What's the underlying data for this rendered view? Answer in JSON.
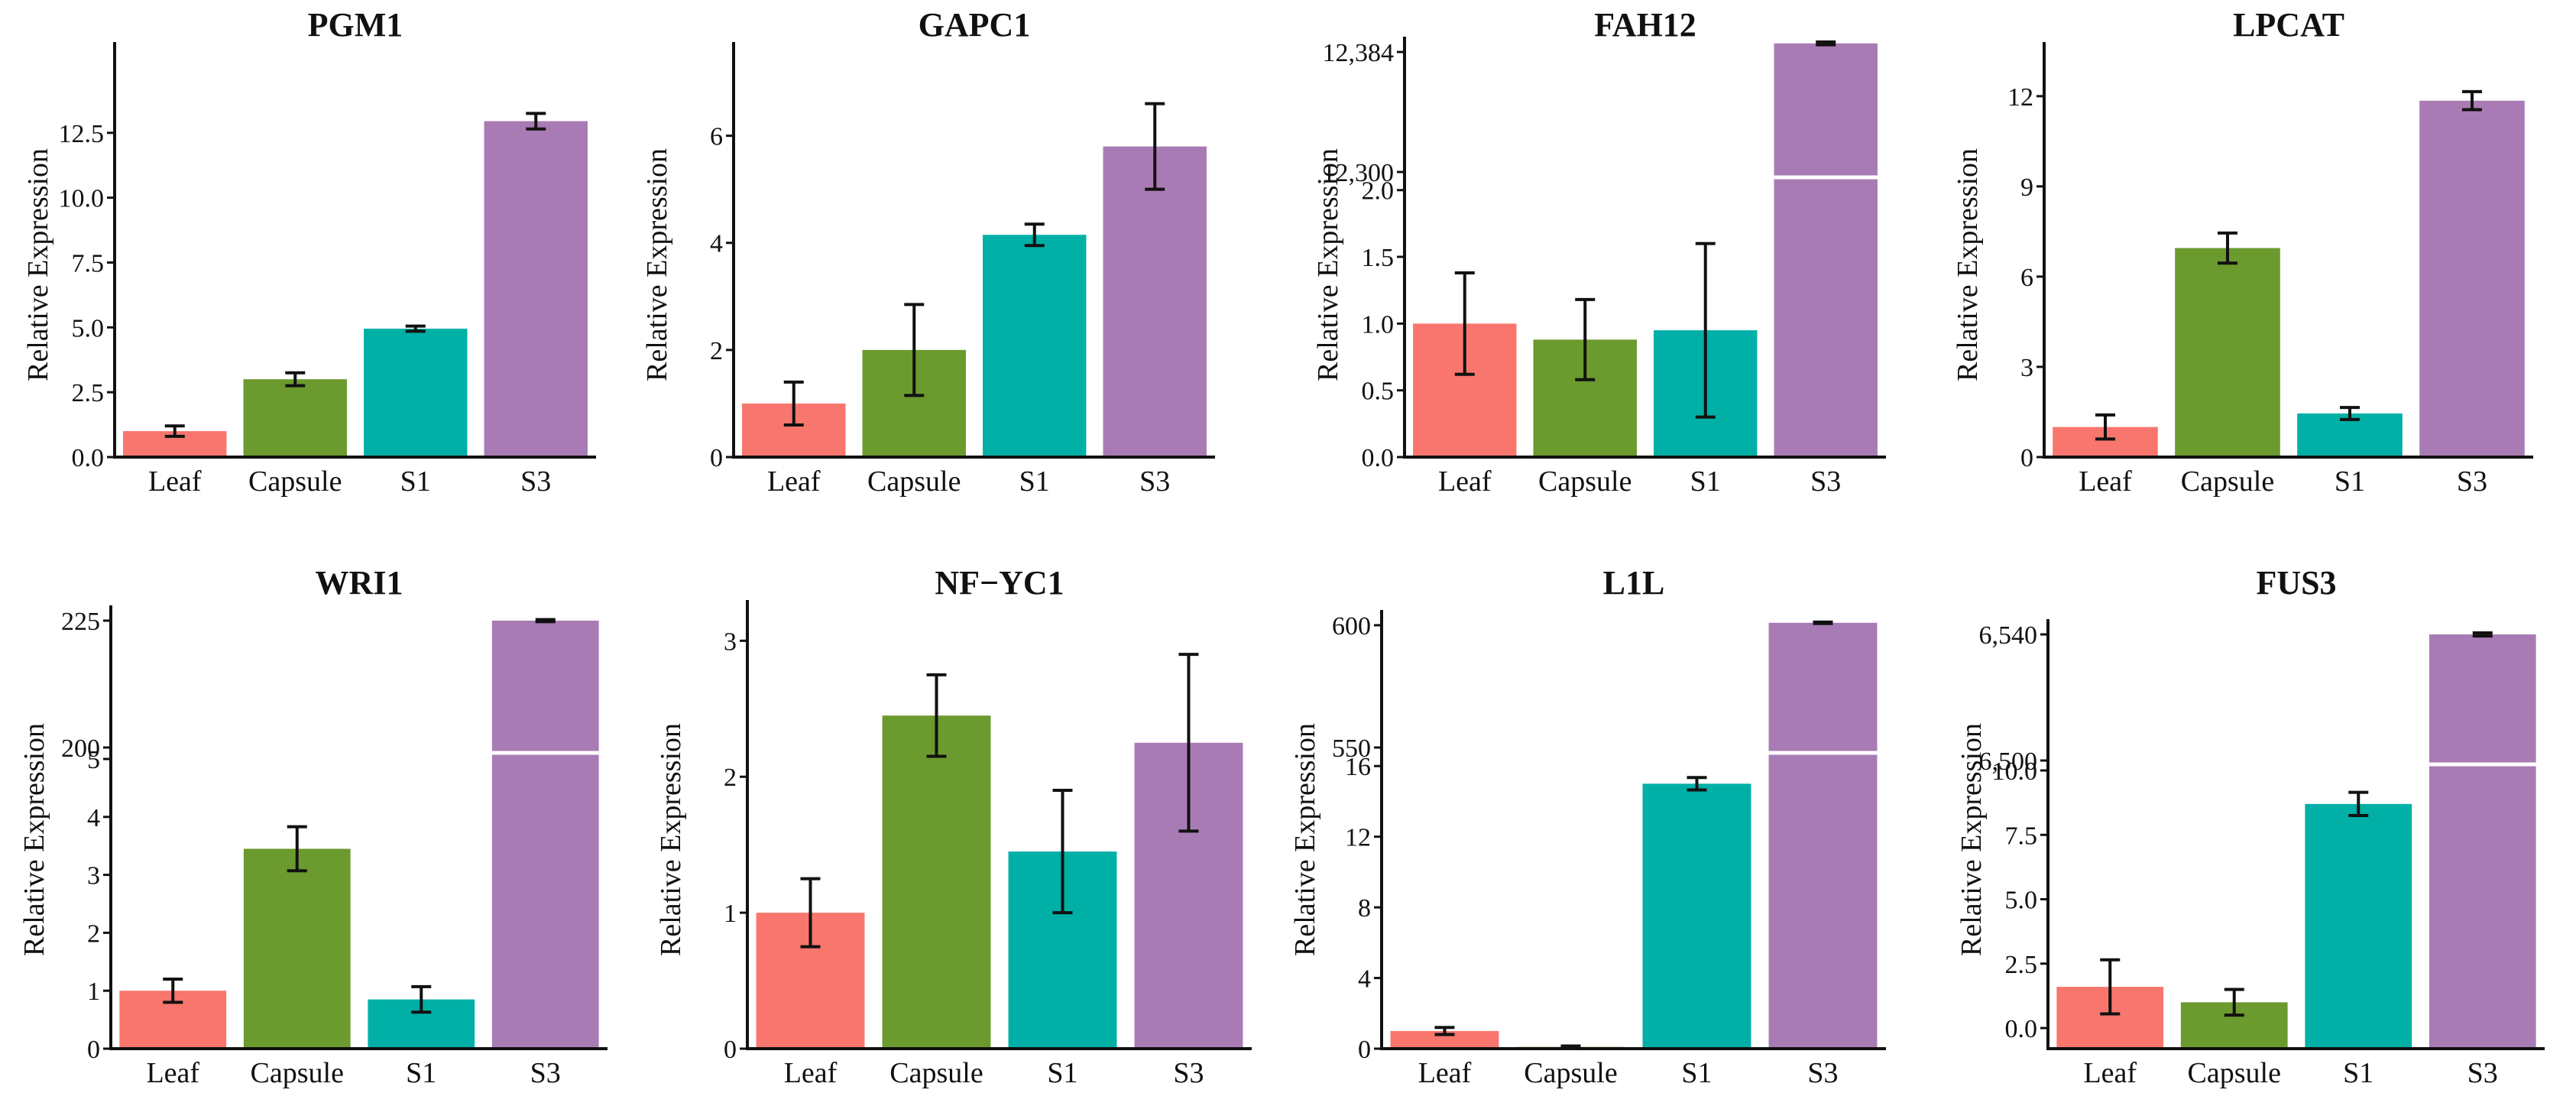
{
  "colors": {
    "Leaf": "#F8766D",
    "Capsule": "#6B9A2E",
    "S1": "#00B0A6",
    "S3": "#A97BB4",
    "axis": "#111111",
    "break_line": "#ffffff"
  },
  "chart_data": [
    {
      "type": "bar",
      "title": "PGM1",
      "xlabel": "",
      "ylabel": "Relative Expression",
      "categories": [
        "Leaf",
        "Capsule",
        "S1",
        "S3"
      ],
      "values": [
        1.0,
        3.0,
        4.95,
        12.95
      ],
      "errors": [
        0.2,
        0.25,
        0.1,
        0.3
      ],
      "ylim": [
        0,
        16
      ],
      "yticks": [
        0,
        2.5,
        5.0,
        7.5,
        10.0,
        12.5
      ],
      "ytick_labels": [
        "0.0",
        "2.5",
        "5.0",
        "7.5",
        "10.0",
        "12.5"
      ]
    },
    {
      "type": "bar",
      "title": "GAPC1",
      "xlabel": "",
      "ylabel": "Relative Expression",
      "categories": [
        "Leaf",
        "Capsule",
        "S1",
        "S3"
      ],
      "values": [
        1.0,
        2.0,
        4.15,
        5.8
      ],
      "errors": [
        0.4,
        0.85,
        0.2,
        0.8
      ],
      "ylim": [
        0,
        7.75
      ],
      "yticks": [
        0,
        2,
        4,
        6
      ],
      "ytick_labels": [
        "0",
        "2",
        "4",
        "6"
      ]
    },
    {
      "type": "bar",
      "title": "FAH12",
      "xlabel": "",
      "ylabel": "Relative Expression",
      "categories": [
        "Leaf",
        "Capsule",
        "S1",
        "S3"
      ],
      "values": [
        1.0,
        0.88,
        0.95,
        12390
      ],
      "errors": [
        0.38,
        0.3,
        0.65,
        1
      ],
      "axis_break": true,
      "lower_ylim": [
        0,
        2.05
      ],
      "lower_yticks": [
        0,
        0.5,
        1.0,
        1.5,
        2.0
      ],
      "lower_ytick_labels": [
        "0.0",
        "0.5",
        "1.0",
        "1.5",
        "2.0"
      ],
      "upper_ylim": [
        12300,
        12384
      ],
      "upper_yticks": [
        12300,
        12384
      ],
      "upper_ytick_labels": [
        "12,300",
        "12,384"
      ]
    },
    {
      "type": "bar",
      "title": "LPCAT",
      "xlabel": "",
      "ylabel": "Relative Expression",
      "categories": [
        "Leaf",
        "Capsule",
        "S1",
        "S3"
      ],
      "values": [
        1.0,
        6.95,
        1.45,
        11.85
      ],
      "errors": [
        0.4,
        0.5,
        0.2,
        0.3
      ],
      "ylim": [
        0,
        13.8
      ],
      "yticks": [
        0,
        3,
        6,
        9,
        12
      ],
      "ytick_labels": [
        "0",
        "3",
        "6",
        "9",
        "12"
      ]
    },
    {
      "type": "bar",
      "title": "WRI1",
      "xlabel": "",
      "ylabel": "Relative Expression",
      "categories": [
        "Leaf",
        "Capsule",
        "S1",
        "S3"
      ],
      "values": [
        1.0,
        3.45,
        0.85,
        225
      ],
      "errors": [
        0.2,
        0.38,
        0.22,
        0.2
      ],
      "axis_break": true,
      "lower_ylim": [
        0,
        5
      ],
      "lower_yticks": [
        0,
        1,
        2,
        3,
        4,
        5
      ],
      "lower_ytick_labels": [
        "0",
        "1",
        "2",
        "3",
        "4",
        "5"
      ],
      "upper_ylim": [
        200,
        225
      ],
      "upper_yticks": [
        200,
        225
      ],
      "upper_ytick_labels": [
        "200",
        "225"
      ]
    },
    {
      "type": "bar",
      "title": "NF−YC1",
      "xlabel": "",
      "ylabel": "Relative Expression",
      "categories": [
        "Leaf",
        "Capsule",
        "S1",
        "S3"
      ],
      "values": [
        1.0,
        2.45,
        1.45,
        2.25
      ],
      "errors": [
        0.25,
        0.3,
        0.45,
        0.65
      ],
      "ylim": [
        0,
        3.3
      ],
      "yticks": [
        0,
        1,
        2,
        3
      ],
      "ytick_labels": [
        "0",
        "1",
        "2",
        "3"
      ]
    },
    {
      "type": "bar",
      "title": "L1L",
      "xlabel": "",
      "ylabel": "Relative Expression",
      "categories": [
        "Leaf",
        "Capsule",
        "S1",
        "S3"
      ],
      "values": [
        1.0,
        0.1,
        15.0,
        601
      ],
      "errors": [
        0.2,
        0.05,
        0.35,
        0.3
      ],
      "axis_break": true,
      "lower_ylim": [
        0,
        16.4
      ],
      "lower_yticks": [
        0,
        4,
        8,
        12,
        16
      ],
      "lower_ytick_labels": [
        "0",
        "4",
        "8",
        "12",
        "16"
      ],
      "upper_ylim": [
        550,
        600
      ],
      "upper_yticks": [
        550,
        600
      ],
      "upper_ytick_labels": [
        "550",
        "600"
      ]
    },
    {
      "type": "bar",
      "title": "FUS3",
      "xlabel": "",
      "ylabel": "Relative Expression",
      "categories": [
        "Leaf",
        "Capsule",
        "S1",
        "S3"
      ],
      "values": [
        1.6,
        1.0,
        8.7,
        6540
      ],
      "errors": [
        1.05,
        0.5,
        0.45,
        0.5
      ],
      "axis_break": true,
      "lower_ylim": [
        -0.8,
        10.0
      ],
      "lower_yticks": [
        0,
        2.5,
        5.0,
        7.5,
        10.0
      ],
      "lower_ytick_labels": [
        "0.0",
        "2.5",
        "5.0",
        "7.5",
        "10.0"
      ],
      "upper_ylim": [
        6500,
        6540
      ],
      "upper_yticks": [
        6500,
        6540
      ],
      "upper_ytick_labels": [
        "6,500",
        "6,540"
      ]
    }
  ]
}
